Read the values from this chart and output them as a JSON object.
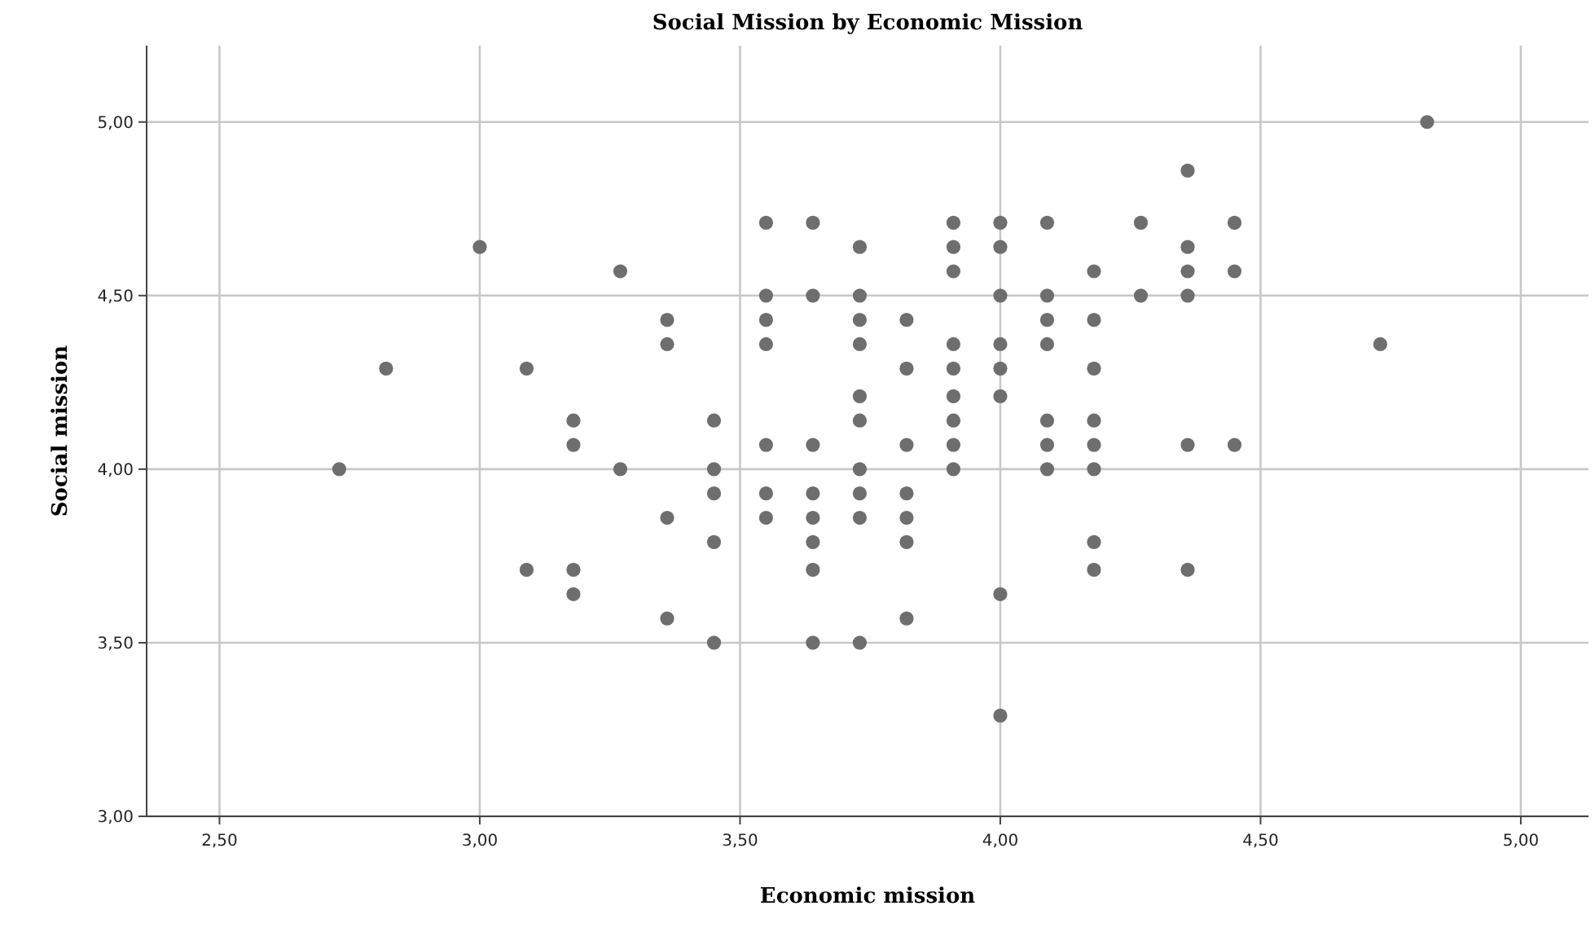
{
  "chart_data": {
    "type": "scatter",
    "title": "Social Mission by Economic Mission",
    "xlabel": "Economic mission",
    "ylabel": "Social mission",
    "xlim": [
      2.36,
      5.13
    ],
    "ylim": [
      3,
      5.22
    ],
    "xticks": [
      {
        "value": 2.5,
        "label": "2,50"
      },
      {
        "value": 3,
        "label": "3,00"
      },
      {
        "value": 3.5,
        "label": "3,50"
      },
      {
        "value": 4,
        "label": "4,00"
      },
      {
        "value": 4.5,
        "label": "4,50"
      },
      {
        "value": 5,
        "label": "5,00"
      }
    ],
    "yticks": [
      {
        "value": 3,
        "label": "3,00"
      },
      {
        "value": 3.5,
        "label": "3,50"
      },
      {
        "value": 4,
        "label": "4,00"
      },
      {
        "value": 4.5,
        "label": "4,50"
      },
      {
        "value": 5,
        "label": "5,00"
      }
    ],
    "grid": true,
    "marker": "circle",
    "series": [
      {
        "color": "#6e6e6e",
        "x": [
          2.73,
          2.82,
          3.0,
          3.09,
          3.09,
          3.18,
          3.18,
          3.18,
          3.18,
          3.27,
          3.27,
          3.36,
          3.36,
          3.36,
          3.36,
          3.45,
          3.45,
          3.45,
          3.45,
          3.45,
          3.55,
          3.55,
          3.55,
          3.55,
          3.55,
          3.55,
          3.55,
          3.64,
          3.64,
          3.64,
          3.64,
          3.64,
          3.64,
          3.64,
          3.64,
          3.73,
          3.73,
          3.73,
          3.73,
          3.73,
          3.73,
          3.73,
          3.73,
          3.73,
          3.73,
          3.82,
          3.82,
          3.82,
          3.82,
          3.82,
          3.82,
          3.82,
          3.91,
          3.91,
          3.91,
          3.91,
          3.91,
          3.91,
          3.91,
          3.91,
          3.91,
          4.0,
          4.0,
          4.0,
          4.0,
          4.0,
          4.0,
          4.0,
          4.0,
          4.09,
          4.09,
          4.09,
          4.09,
          4.09,
          4.09,
          4.09,
          4.18,
          4.18,
          4.18,
          4.18,
          4.18,
          4.18,
          4.18,
          4.18,
          4.27,
          4.27,
          4.36,
          4.36,
          4.36,
          4.36,
          4.36,
          4.36,
          4.45,
          4.45,
          4.45,
          4.73,
          4.82
        ],
        "values": [
          4.0,
          4.29,
          4.64,
          4.29,
          3.71,
          4.14,
          4.07,
          3.71,
          3.64,
          4.57,
          4.0,
          4.43,
          4.36,
          3.86,
          3.57,
          4.14,
          4.0,
          3.93,
          3.79,
          3.5,
          4.71,
          4.5,
          4.43,
          4.36,
          4.07,
          3.93,
          3.86,
          4.71,
          4.5,
          4.07,
          3.93,
          3.86,
          3.79,
          3.71,
          3.5,
          4.64,
          4.5,
          4.43,
          4.36,
          4.21,
          4.14,
          4.0,
          3.93,
          3.86,
          3.5,
          4.43,
          4.29,
          4.07,
          3.93,
          3.86,
          3.79,
          3.57,
          4.71,
          4.64,
          4.57,
          4.36,
          4.29,
          4.21,
          4.14,
          4.07,
          4.0,
          4.71,
          4.64,
          4.5,
          4.36,
          4.29,
          4.21,
          3.64,
          3.29,
          4.71,
          4.5,
          4.43,
          4.36,
          4.14,
          4.07,
          4.0,
          4.57,
          4.43,
          4.29,
          4.14,
          4.07,
          4.0,
          3.79,
          3.71,
          4.71,
          4.5,
          4.86,
          4.64,
          4.57,
          4.5,
          4.07,
          3.71,
          4.71,
          4.57,
          4.07,
          4.36,
          5.0
        ]
      }
    ]
  }
}
